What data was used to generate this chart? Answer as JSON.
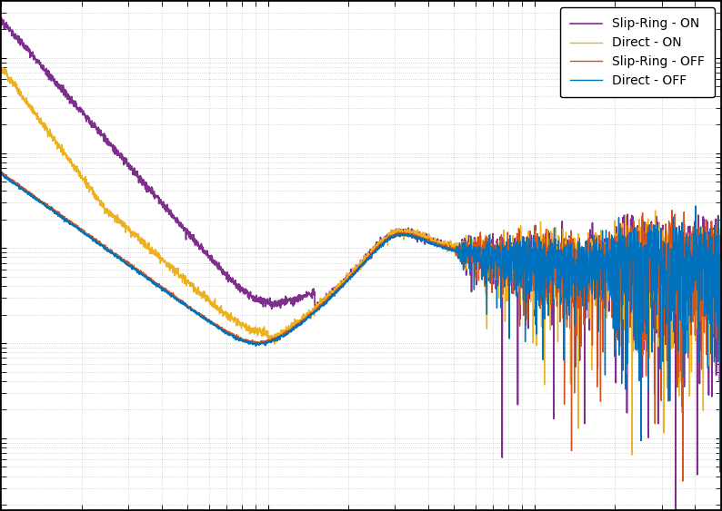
{
  "title": "",
  "xlabel": "",
  "ylabel": "",
  "legend": [
    "Direct - OFF",
    "Slip-Ring - OFF",
    "Direct - ON",
    "Slip-Ring - ON"
  ],
  "colors": [
    "#0072BD",
    "#D95319",
    "#EDB120",
    "#7E2F8E"
  ],
  "linewidths": [
    1.0,
    1.0,
    1.0,
    1.2
  ],
  "xlim_log": [
    1,
    500
  ],
  "background_color": "#ffffff",
  "outer_color": "#000000",
  "grid_color": "#bbbbbb",
  "grid_style": ":",
  "seed": 42
}
